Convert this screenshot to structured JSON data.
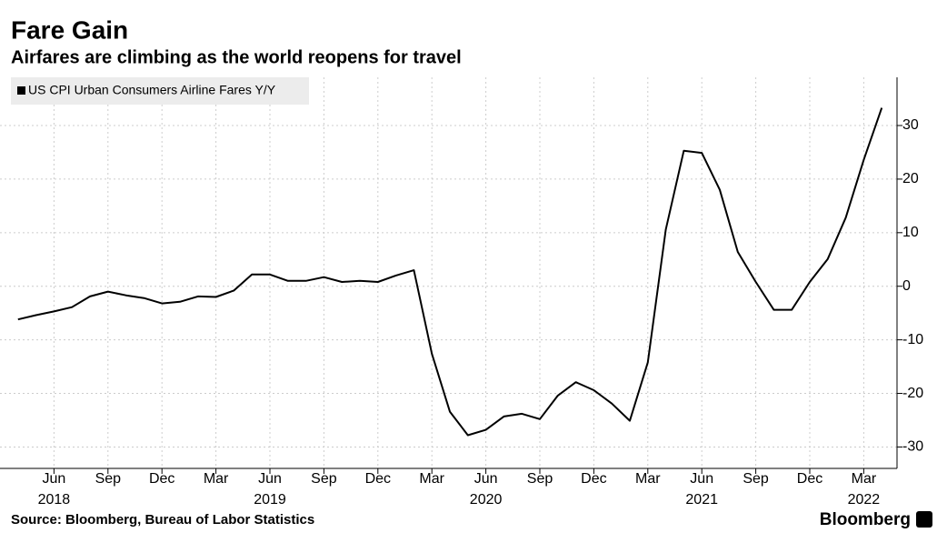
{
  "chart_data": {
    "type": "line",
    "title": "Fare Gain",
    "subtitle": "Airfares are climbing as the world reopens for travel",
    "source": "Source: Bloomberg, Bureau of Labor Statistics",
    "brand": "Bloomberg",
    "x": [
      "2018-04",
      "2018-05",
      "2018-06",
      "2018-07",
      "2018-08",
      "2018-09",
      "2018-10",
      "2018-11",
      "2018-12",
      "2019-01",
      "2019-02",
      "2019-03",
      "2019-04",
      "2019-05",
      "2019-06",
      "2019-07",
      "2019-08",
      "2019-09",
      "2019-10",
      "2019-11",
      "2019-12",
      "2020-01",
      "2020-02",
      "2020-03",
      "2020-04",
      "2020-05",
      "2020-06",
      "2020-07",
      "2020-08",
      "2020-09",
      "2020-10",
      "2020-11",
      "2020-12",
      "2021-01",
      "2021-02",
      "2021-03",
      "2021-04",
      "2021-05",
      "2021-06",
      "2021-07",
      "2021-08",
      "2021-09",
      "2021-10",
      "2021-11",
      "2021-12",
      "2022-01",
      "2022-02",
      "2022-03",
      "2022-04"
    ],
    "series": [
      {
        "name": "US CPI Urban Consumers Airline Fares Y/Y",
        "color": "#000000",
        "values": [
          -6.2,
          -5.4,
          -4.7,
          -3.9,
          -1.9,
          -1.0,
          -1.7,
          -2.2,
          -3.2,
          -2.9,
          -1.9,
          -2.0,
          -0.8,
          2.2,
          2.2,
          1.0,
          1.0,
          1.7,
          0.8,
          1.0,
          0.8,
          2.0,
          3.0,
          -12.6,
          -23.4,
          -27.8,
          -26.8,
          -24.3,
          -23.8,
          -24.8,
          -20.4,
          -17.9,
          -19.4,
          -21.9,
          -25.1,
          -14.2,
          10.6,
          25.3,
          24.9,
          18.0,
          6.4,
          0.8,
          -4.4,
          -4.4,
          0.8,
          5.1,
          12.8,
          23.6,
          33.3
        ]
      }
    ],
    "xlim": [
      "2018-03",
      "2022-05"
    ],
    "xticks": [
      {
        "value": "2018-06",
        "label": "Jun"
      },
      {
        "value": "2018-09",
        "label": "Sep"
      },
      {
        "value": "2018-12",
        "label": "Dec"
      },
      {
        "value": "2019-03",
        "label": "Mar"
      },
      {
        "value": "2019-06",
        "label": "Jun"
      },
      {
        "value": "2019-09",
        "label": "Sep"
      },
      {
        "value": "2019-12",
        "label": "Dec"
      },
      {
        "value": "2020-03",
        "label": "Mar"
      },
      {
        "value": "2020-06",
        "label": "Jun"
      },
      {
        "value": "2020-09",
        "label": "Sep"
      },
      {
        "value": "2020-12",
        "label": "Dec"
      },
      {
        "value": "2021-03",
        "label": "Mar"
      },
      {
        "value": "2021-06",
        "label": "Jun"
      },
      {
        "value": "2021-09",
        "label": "Sep"
      },
      {
        "value": "2021-12",
        "label": "Dec"
      },
      {
        "value": "2022-03",
        "label": "Mar"
      }
    ],
    "year_ticks": [
      {
        "value": "2018-06",
        "label": "2018"
      },
      {
        "value": "2019-06",
        "label": "2019"
      },
      {
        "value": "2020-06",
        "label": "2020"
      },
      {
        "value": "2021-06",
        "label": "2021"
      },
      {
        "value": "2022-03",
        "label": "2022"
      }
    ],
    "ylim": [
      -34,
      39
    ],
    "yticks": [
      -30,
      -20,
      -10,
      0,
      10,
      20,
      30
    ],
    "grid": true,
    "legend": "top-left"
  }
}
